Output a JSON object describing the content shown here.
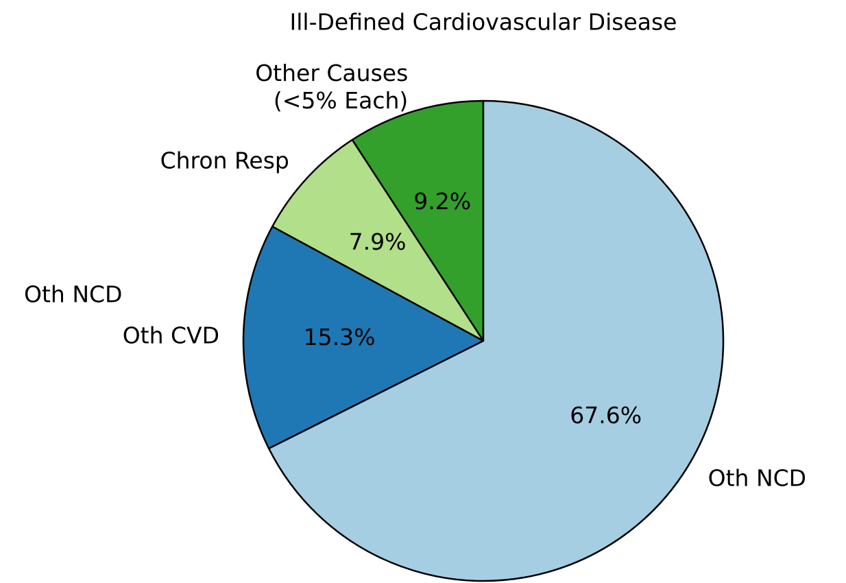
{
  "chart_data": {
    "type": "pie",
    "title": "Ill-Defined Cardiovascular Disease",
    "categories": [
      "Other Causes\n(<5% Each)",
      "Chron Resp",
      "Oth CVD",
      "Oth NCD"
    ],
    "values": [
      9.2,
      7.9,
      15.3,
      67.6
    ],
    "value_labels": [
      "9.2%",
      "7.9%",
      "15.3%",
      "67.6%"
    ],
    "colors": [
      "#33a02c",
      "#b2df8a",
      "#1f78b4",
      "#a6cee3"
    ],
    "start_angle": 90,
    "direction": "counterclockwise",
    "annotations": [
      "Oth NCD"
    ]
  }
}
